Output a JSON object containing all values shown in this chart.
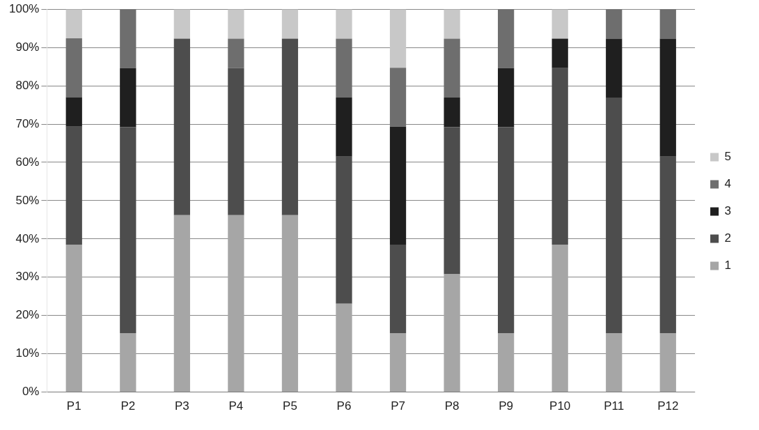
{
  "chart_data": {
    "type": "bar",
    "stacked": true,
    "categories": [
      "P1",
      "P2",
      "P3",
      "P4",
      "P5",
      "P6",
      "P7",
      "P8",
      "P9",
      "P10",
      "P11",
      "P12"
    ],
    "series": [
      {
        "name": "1",
        "color": "#a6a6a6",
        "values": [
          38.5,
          15.4,
          46.2,
          46.2,
          46.2,
          23.1,
          15.4,
          30.8,
          15.4,
          38.5,
          15.4,
          15.4
        ]
      },
      {
        "name": "2",
        "color": "#4d4d4d",
        "values": [
          30.8,
          53.8,
          46.1,
          38.4,
          46.1,
          38.4,
          23.1,
          38.4,
          53.8,
          46.1,
          61.5,
          46.1
        ]
      },
      {
        "name": "3",
        "color": "#1f1f1f",
        "values": [
          7.7,
          15.4,
          0,
          0,
          0,
          15.4,
          30.8,
          7.7,
          15.4,
          7.7,
          15.4,
          30.8
        ]
      },
      {
        "name": "4",
        "color": "#6e6e6e",
        "values": [
          15.4,
          15.4,
          0,
          7.7,
          0,
          15.4,
          15.4,
          15.4,
          15.4,
          0,
          7.7,
          7.7
        ]
      },
      {
        "name": "5",
        "color": "#c8c8c8",
        "values": [
          7.6,
          0,
          7.7,
          7.7,
          7.7,
          7.7,
          15.3,
          7.7,
          0,
          7.7,
          0,
          0
        ]
      }
    ],
    "ylim": [
      0,
      100
    ],
    "yticks": [
      {
        "value": 0,
        "label": "0%"
      },
      {
        "value": 10,
        "label": "10%"
      },
      {
        "value": 20,
        "label": "20%"
      },
      {
        "value": 30,
        "label": "30%"
      },
      {
        "value": 40,
        "label": "40%"
      },
      {
        "value": 50,
        "label": "50%"
      },
      {
        "value": 60,
        "label": "60%"
      },
      {
        "value": 70,
        "label": "70%"
      },
      {
        "value": 80,
        "label": "80%"
      },
      {
        "value": 90,
        "label": "90%"
      },
      {
        "value": 100,
        "label": "100%"
      }
    ],
    "grid": "y",
    "legend": "right"
  }
}
